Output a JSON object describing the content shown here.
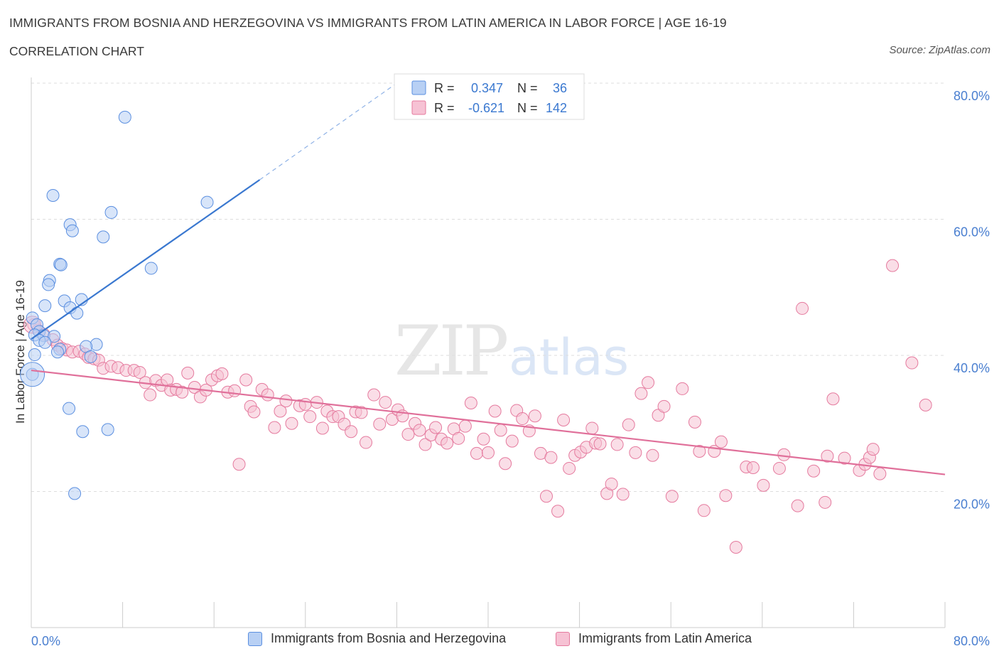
{
  "title": "IMMIGRANTS FROM BOSNIA AND HERZEGOVINA VS IMMIGRANTS FROM LATIN AMERICA IN LABOR FORCE | AGE 16-19",
  "subtitle": "CORRELATION CHART",
  "source": "Source: ZipAtlas.com",
  "watermark": {
    "zip": "ZIP",
    "atlas": "atlas"
  },
  "colors": {
    "blue": "#5b8fe0",
    "blue_fill": "#b8d0f4",
    "blue_line": "#3a78d0",
    "pink": "#e57a9e",
    "pink_fill": "#f6c2d4",
    "pink_line": "#e0709a",
    "axis_text": "#4a7fd0",
    "grid": "#dddddd"
  },
  "legend_top": [
    {
      "r_label": "R =",
      "r_value": "0.347",
      "n_label": "N =",
      "n_value": "36"
    },
    {
      "r_label": "R =",
      "r_value": "-0.621",
      "n_label": "N =",
      "n_value": "142"
    }
  ],
  "legend_bottom": [
    {
      "label": "Immigrants from Bosnia and Herzegovina"
    },
    {
      "label": "Immigrants from Latin America"
    }
  ],
  "chart_data": {
    "type": "scatter",
    "title": "IMMIGRANTS FROM BOSNIA AND HERZEGOVINA VS IMMIGRANTS FROM LATIN AMERICA IN LABOR FORCE | AGE 16-19",
    "xlabel": "",
    "ylabel": "In Labor Force | Age 16-19",
    "xlim": [
      0,
      80
    ],
    "ylim": [
      0,
      80
    ],
    "x_tick_labels": [
      "0.0%",
      "80.0%"
    ],
    "y_tick_labels": [
      "20.0%",
      "40.0%",
      "60.0%",
      "80.0%"
    ],
    "y_ticks": [
      20,
      40,
      60,
      80
    ],
    "legend_position": "top-center",
    "series": [
      {
        "name": "Immigrants from Bosnia and Herzegovina",
        "R": 0.347,
        "N": 36,
        "trend": {
          "x": [
            0,
            20
          ],
          "y": [
            42.4,
            65.8
          ],
          "dashed_to": [
            32,
            80
          ]
        },
        "points": [
          [
            8.2,
            75
          ],
          [
            1.9,
            63.5
          ],
          [
            15.4,
            62.5
          ],
          [
            7.0,
            61.0
          ],
          [
            3.4,
            59.2
          ],
          [
            3.6,
            58.3
          ],
          [
            6.3,
            57.4
          ],
          [
            2.5,
            53.4
          ],
          [
            2.6,
            53.3
          ],
          [
            10.5,
            52.8
          ],
          [
            1.6,
            51.0
          ],
          [
            1.5,
            50.4
          ],
          [
            4.4,
            48.2
          ],
          [
            2.9,
            48.0
          ],
          [
            1.2,
            47.3
          ],
          [
            3.4,
            47.0
          ],
          [
            4.0,
            46.2
          ],
          [
            0.1,
            45.5
          ],
          [
            0.5,
            44.5
          ],
          [
            0.7,
            43.5
          ],
          [
            0.3,
            43.0
          ],
          [
            1.1,
            42.9
          ],
          [
            2.0,
            42.8
          ],
          [
            0.7,
            42.2
          ],
          [
            1.2,
            41.9
          ],
          [
            5.7,
            41.6
          ],
          [
            4.8,
            41.3
          ],
          [
            2.5,
            40.9
          ],
          [
            2.3,
            40.5
          ],
          [
            0.3,
            40.1
          ],
          [
            5.2,
            39.8
          ],
          [
            0.1,
            37.2
          ],
          [
            3.3,
            32.2
          ],
          [
            4.5,
            28.8
          ],
          [
            6.7,
            29.1
          ],
          [
            3.8,
            19.7
          ]
        ]
      },
      {
        "name": "Immigrants from Latin America",
        "R": -0.621,
        "N": 142,
        "trend": {
          "x": [
            0,
            80
          ],
          "y": [
            37.8,
            22.5
          ]
        },
        "points": [
          [
            0.2,
            44.5
          ],
          [
            0.6,
            43.7
          ],
          [
            1.1,
            43.1
          ],
          [
            1.9,
            42.3
          ],
          [
            2.3,
            41.5
          ],
          [
            2.7,
            41.0
          ],
          [
            3.1,
            40.8
          ],
          [
            3.6,
            40.5
          ],
          [
            4.2,
            40.6
          ],
          [
            4.7,
            40.2
          ],
          [
            5.0,
            39.7
          ],
          [
            5.5,
            39.5
          ],
          [
            5.9,
            39.3
          ],
          [
            6.3,
            38.1
          ],
          [
            7.0,
            38.4
          ],
          [
            7.6,
            38.2
          ],
          [
            8.3,
            37.8
          ],
          [
            9.0,
            37.8
          ],
          [
            9.5,
            37.5
          ],
          [
            10.0,
            36.0
          ],
          [
            10.4,
            34.2
          ],
          [
            10.9,
            36.3
          ],
          [
            11.4,
            35.6
          ],
          [
            11.9,
            36.4
          ],
          [
            12.2,
            34.9
          ],
          [
            12.7,
            35.0
          ],
          [
            13.2,
            34.6
          ],
          [
            13.7,
            37.4
          ],
          [
            14.3,
            35.3
          ],
          [
            14.8,
            33.9
          ],
          [
            15.3,
            34.9
          ],
          [
            15.8,
            36.4
          ],
          [
            16.3,
            37.0
          ],
          [
            16.7,
            37.3
          ],
          [
            17.2,
            34.6
          ],
          [
            17.8,
            34.8
          ],
          [
            18.2,
            24.0
          ],
          [
            18.8,
            36.4
          ],
          [
            19.2,
            32.5
          ],
          [
            19.5,
            31.7
          ],
          [
            20.2,
            35.0
          ],
          [
            20.7,
            34.2
          ],
          [
            21.3,
            29.4
          ],
          [
            21.8,
            31.8
          ],
          [
            22.3,
            33.3
          ],
          [
            22.8,
            30.0
          ],
          [
            23.5,
            32.6
          ],
          [
            24.0,
            32.8
          ],
          [
            24.4,
            31.0
          ],
          [
            25.0,
            33.1
          ],
          [
            25.5,
            29.3
          ],
          [
            25.9,
            31.8
          ],
          [
            26.4,
            31.0
          ],
          [
            26.9,
            31.0
          ],
          [
            27.4,
            29.9
          ],
          [
            28.0,
            28.8
          ],
          [
            28.4,
            31.7
          ],
          [
            28.9,
            31.6
          ],
          [
            29.3,
            27.2
          ],
          [
            30.0,
            34.2
          ],
          [
            30.5,
            29.9
          ],
          [
            31.0,
            33.1
          ],
          [
            31.6,
            30.6
          ],
          [
            32.1,
            32.0
          ],
          [
            32.5,
            31.1
          ],
          [
            33.0,
            28.4
          ],
          [
            33.6,
            30.0
          ],
          [
            34.0,
            29.0
          ],
          [
            34.5,
            26.9
          ],
          [
            35.0,
            28.3
          ],
          [
            35.4,
            29.4
          ],
          [
            35.9,
            27.7
          ],
          [
            36.4,
            27.1
          ],
          [
            37.0,
            29.2
          ],
          [
            37.4,
            27.8
          ],
          [
            38.0,
            29.6
          ],
          [
            38.5,
            33.0
          ],
          [
            39.0,
            25.6
          ],
          [
            39.6,
            27.7
          ],
          [
            40.0,
            25.7
          ],
          [
            40.6,
            31.8
          ],
          [
            41.1,
            29.0
          ],
          [
            41.5,
            24.1
          ],
          [
            42.1,
            27.4
          ],
          [
            42.5,
            31.9
          ],
          [
            43.0,
            30.7
          ],
          [
            43.6,
            28.9
          ],
          [
            44.1,
            31.1
          ],
          [
            44.6,
            25.6
          ],
          [
            45.1,
            19.3
          ],
          [
            45.5,
            25.0
          ],
          [
            46.1,
            17.1
          ],
          [
            46.6,
            30.5
          ],
          [
            47.1,
            23.4
          ],
          [
            47.6,
            25.3
          ],
          [
            48.1,
            25.8
          ],
          [
            48.6,
            26.5
          ],
          [
            49.1,
            29.3
          ],
          [
            49.4,
            27.1
          ],
          [
            49.8,
            27.0
          ],
          [
            50.4,
            19.7
          ],
          [
            50.8,
            21.1
          ],
          [
            51.3,
            26.9
          ],
          [
            51.8,
            19.6
          ],
          [
            52.3,
            29.8
          ],
          [
            52.9,
            25.7
          ],
          [
            53.4,
            34.4
          ],
          [
            54.0,
            36.0
          ],
          [
            54.4,
            25.3
          ],
          [
            54.9,
            31.2
          ],
          [
            55.4,
            32.5
          ],
          [
            56.1,
            19.3
          ],
          [
            57.0,
            35.1
          ],
          [
            58.1,
            30.2
          ],
          [
            58.5,
            25.9
          ],
          [
            58.9,
            17.2
          ],
          [
            59.8,
            25.9
          ],
          [
            60.4,
            27.3
          ],
          [
            60.8,
            19.4
          ],
          [
            61.7,
            11.8
          ],
          [
            62.6,
            23.6
          ],
          [
            63.2,
            23.5
          ],
          [
            64.1,
            20.9
          ],
          [
            65.5,
            23.4
          ],
          [
            65.9,
            25.4
          ],
          [
            67.1,
            17.9
          ],
          [
            67.5,
            46.9
          ],
          [
            68.5,
            23.0
          ],
          [
            69.5,
            18.4
          ],
          [
            69.7,
            25.2
          ],
          [
            70.2,
            33.6
          ],
          [
            71.2,
            24.9
          ],
          [
            72.5,
            23.1
          ],
          [
            73.0,
            24.0
          ],
          [
            73.4,
            25.0
          ],
          [
            74.3,
            22.6
          ],
          [
            73.7,
            26.2
          ],
          [
            75.4,
            53.2
          ],
          [
            77.1,
            38.9
          ],
          [
            78.3,
            32.7
          ]
        ]
      }
    ]
  }
}
